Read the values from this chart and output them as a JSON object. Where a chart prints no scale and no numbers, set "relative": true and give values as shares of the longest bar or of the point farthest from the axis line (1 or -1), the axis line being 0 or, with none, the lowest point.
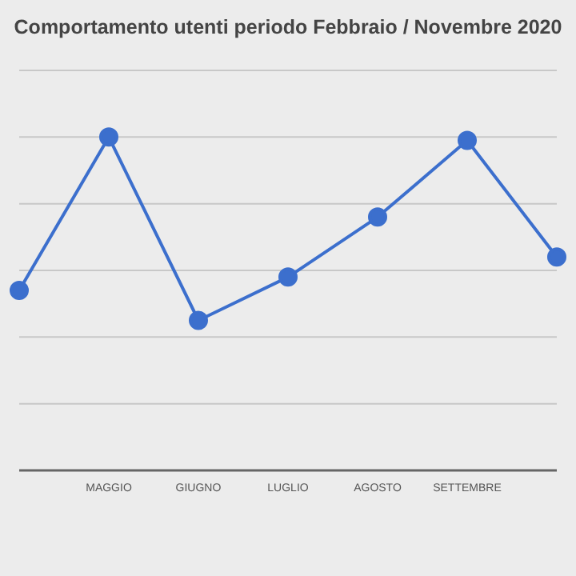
{
  "chart_data": {
    "type": "line",
    "title": "Comportamento utenti periodo Febbraio / Novembre 2020",
    "categories": [
      null,
      "MAGGIO",
      "GIUGNO",
      "LUGLIO",
      "AGOSTO",
      "SETTEMBRE",
      null
    ],
    "series": [
      {
        "color": "#3c6fcd",
        "values": [
          0.54,
          1.0,
          0.45,
          0.58,
          0.76,
          0.99,
          0.64
        ]
      }
    ],
    "relative": true,
    "grid": "y",
    "marker": "circle",
    "line_style": "solid"
  }
}
